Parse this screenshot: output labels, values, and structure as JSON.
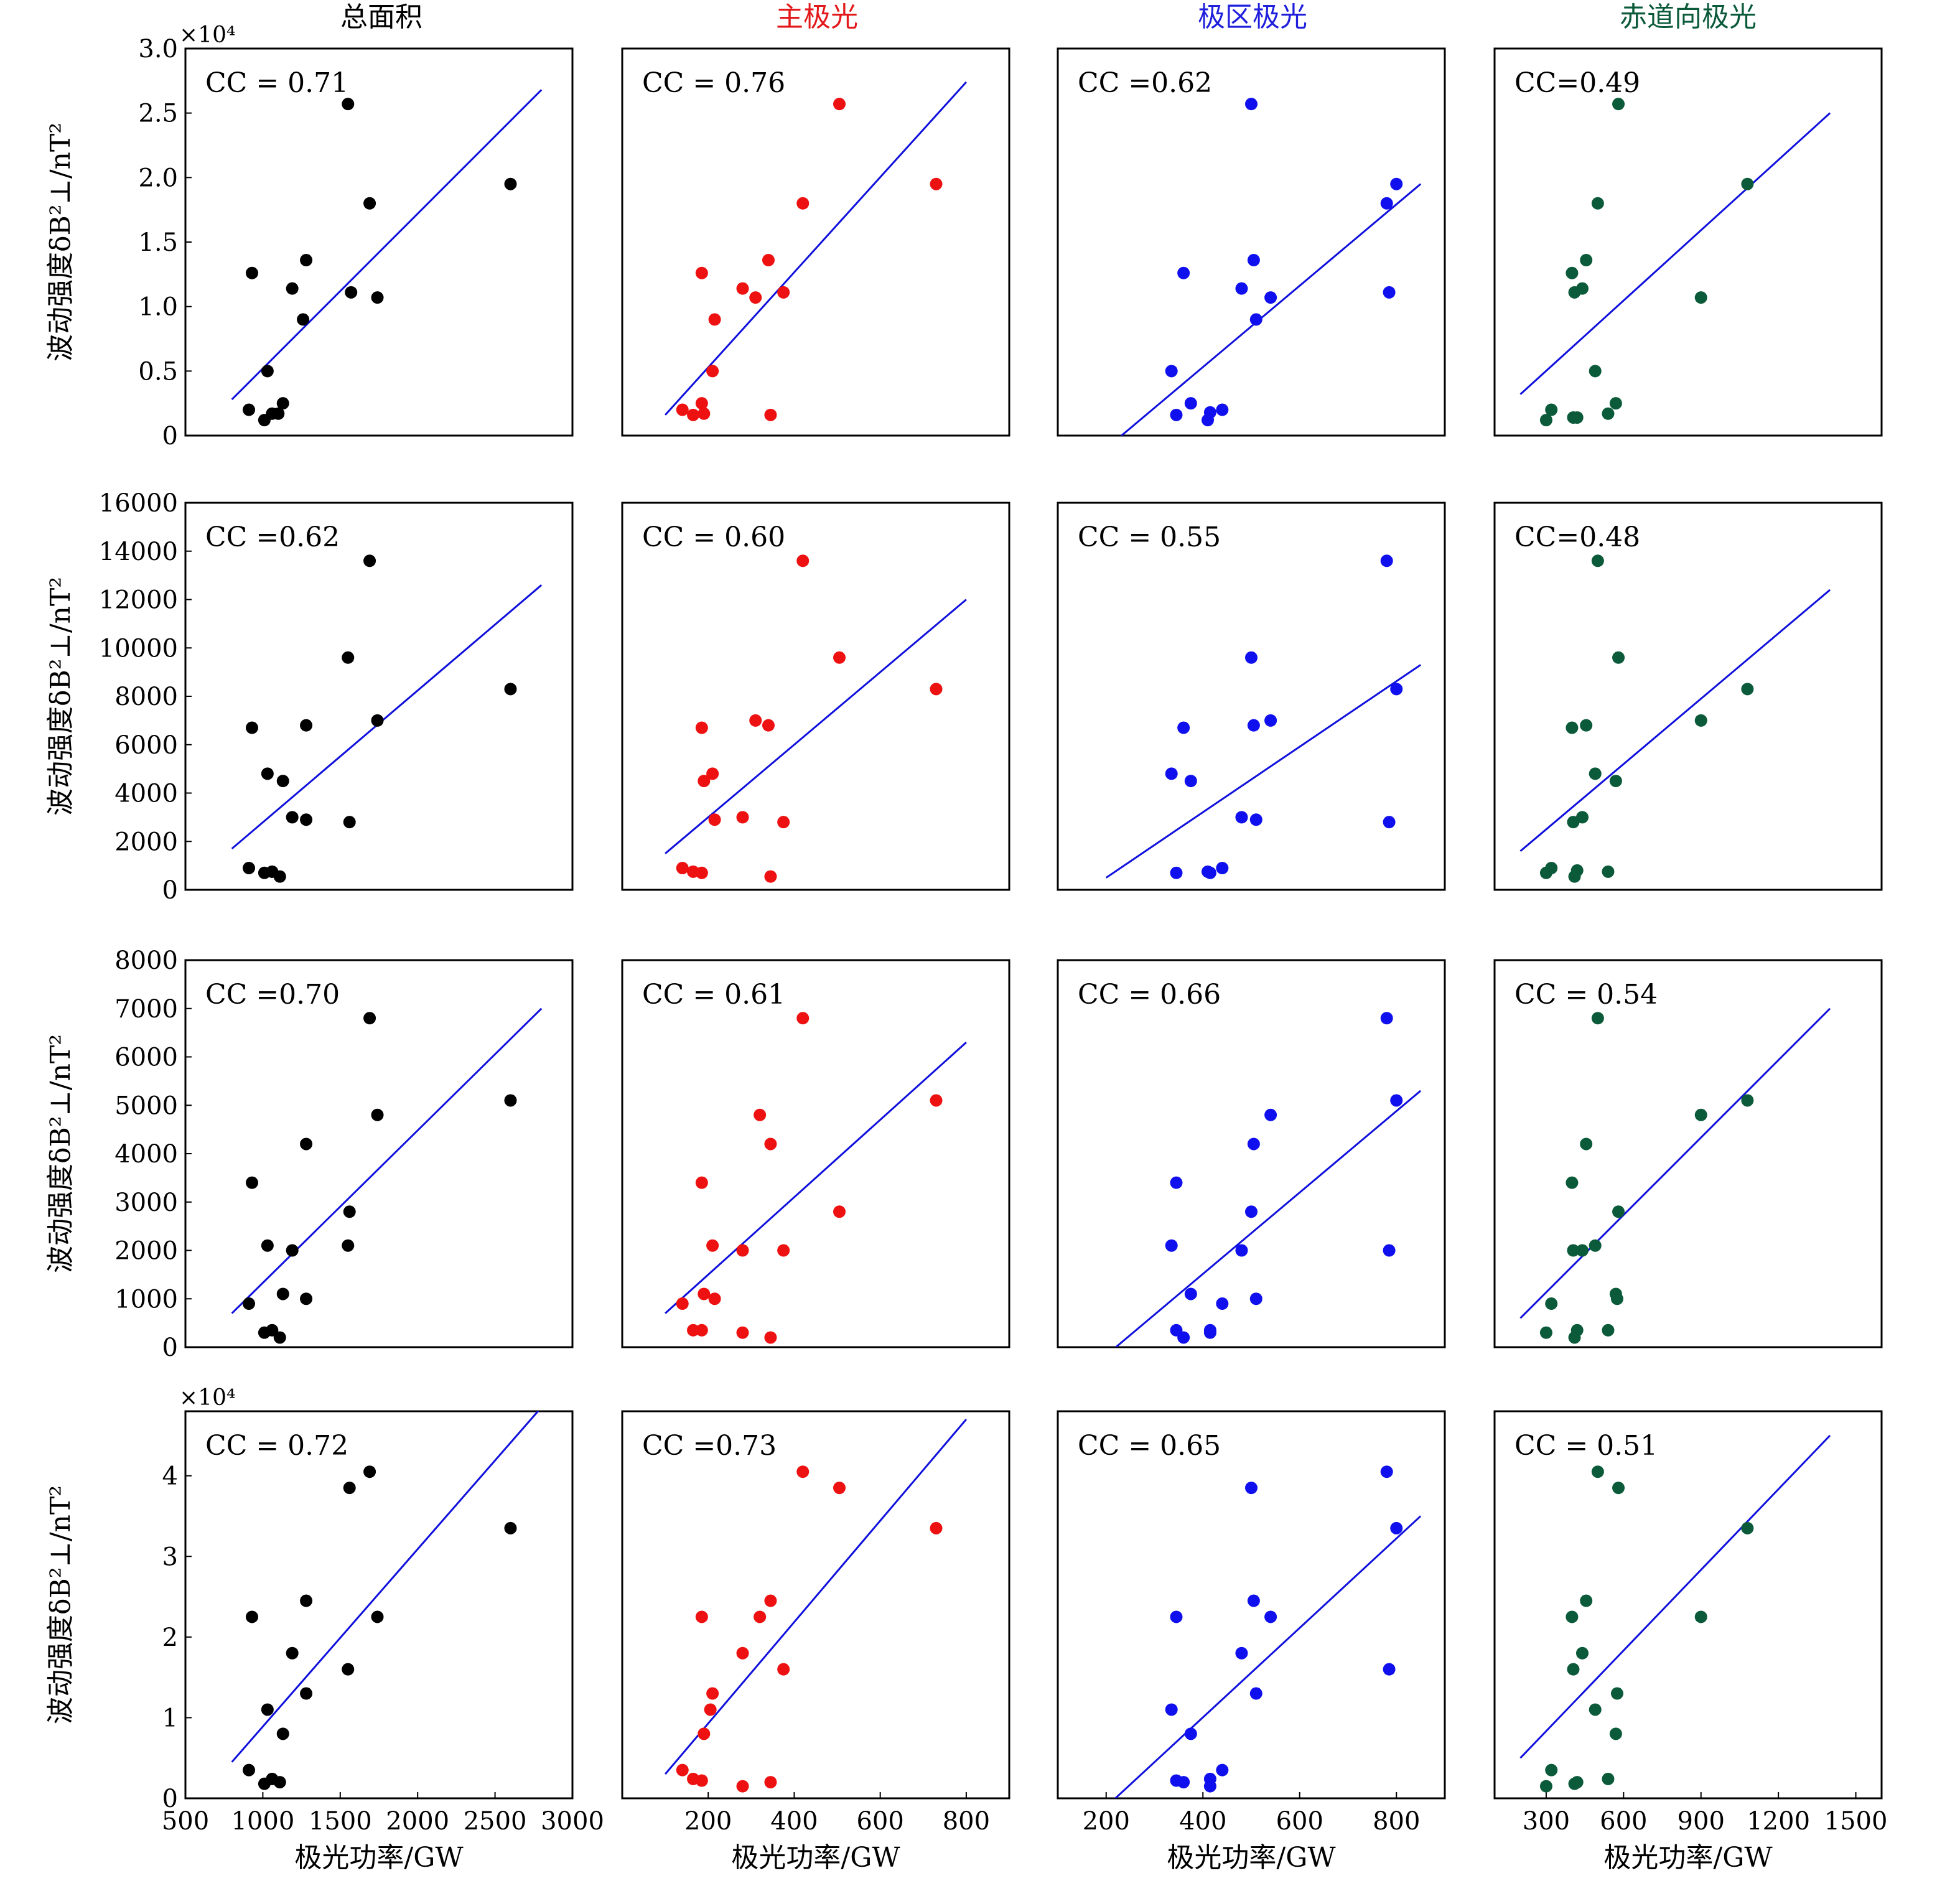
{
  "figure": {
    "column_titles": [
      {
        "text": "总面积",
        "color": "#000000"
      },
      {
        "text": "主极光",
        "color": "#e31a1c"
      },
      {
        "text": "极区极光",
        "color": "#1f1fdc"
      },
      {
        "text": "赤道向极光",
        "color": "#0b5a3a"
      }
    ],
    "ylabel": "波动强度δB²⊥/nT²",
    "xlabel": "极光功率/GW",
    "fit_line_color": "#1010dd",
    "point_colors": [
      "#000000",
      "#ee1111",
      "#1010ee",
      "#0b5a3a"
    ]
  },
  "chart_data": [
    {
      "type": "scatter",
      "row": 0,
      "col": 0,
      "cc": "CC = 0.71",
      "xlim": [
        500,
        3000
      ],
      "ylim": [
        0,
        3.0
      ],
      "yticks": [
        "0",
        "0.5",
        "1.0",
        "1.5",
        "2.0",
        "2.5",
        "3.0"
      ],
      "ytickvals": [
        0,
        0.5,
        1.0,
        1.5,
        2.0,
        2.5,
        3.0
      ],
      "ymult": "×10⁴",
      "xticks": [],
      "xtickvals": [],
      "x": [
        910,
        930,
        1010,
        1030,
        1060,
        1100,
        1130,
        1190,
        1260,
        1280,
        1550,
        1570,
        1690,
        1740,
        2600
      ],
      "y": [
        0.2,
        1.26,
        0.12,
        0.5,
        0.17,
        0.17,
        0.25,
        1.14,
        0.9,
        1.36,
        2.57,
        1.11,
        1.8,
        1.07,
        1.95
      ],
      "fit": {
        "x": [
          800,
          2800
        ],
        "y": [
          0.28,
          2.68
        ]
      }
    },
    {
      "type": "scatter",
      "row": 0,
      "col": 1,
      "cc": "CC = 0.76",
      "xlim": [
        0,
        900
      ],
      "ylim": [
        0,
        3.0
      ],
      "yticks": [],
      "ytickvals": [],
      "xticks": [],
      "xtickvals": [],
      "x": [
        140,
        165,
        185,
        185,
        190,
        210,
        215,
        280,
        310,
        340,
        345,
        375,
        420,
        505,
        730
      ],
      "y": [
        0.2,
        0.16,
        1.26,
        0.25,
        0.17,
        0.5,
        0.9,
        1.14,
        1.07,
        1.36,
        0.16,
        1.11,
        1.8,
        2.57,
        1.95
      ],
      "fit": {
        "x": [
          100,
          800
        ],
        "y": [
          0.16,
          2.74
        ]
      }
    },
    {
      "type": "scatter",
      "row": 0,
      "col": 2,
      "cc": "CC =0.62",
      "xlim": [
        100,
        900
      ],
      "ylim": [
        0,
        3.0
      ],
      "yticks": [],
      "ytickvals": [],
      "xticks": [],
      "xtickvals": [],
      "x": [
        335,
        345,
        360,
        375,
        410,
        415,
        440,
        480,
        500,
        505,
        510,
        540,
        780,
        785,
        800
      ],
      "y": [
        0.5,
        0.16,
        1.26,
        0.25,
        0.12,
        0.18,
        0.2,
        1.14,
        2.57,
        1.36,
        0.9,
        1.07,
        1.8,
        1.11,
        1.95
      ],
      "fit": {
        "x": [
          200,
          850
        ],
        "y": [
          -0.1,
          1.95
        ]
      }
    },
    {
      "type": "scatter",
      "row": 0,
      "col": 3,
      "cc": "CC=0.49",
      "xlim": [
        100,
        1600
      ],
      "ylim": [
        0,
        3.0
      ],
      "yticks": [],
      "ytickvals": [],
      "xticks": [],
      "xtickvals": [],
      "x": [
        300,
        320,
        400,
        405,
        410,
        420,
        440,
        455,
        490,
        500,
        540,
        570,
        580,
        900,
        1080
      ],
      "y": [
        0.12,
        0.2,
        1.26,
        0.14,
        1.11,
        0.14,
        1.14,
        1.36,
        0.5,
        1.8,
        0.17,
        0.25,
        2.57,
        1.07,
        1.95
      ],
      "fit": {
        "x": [
          200,
          1400
        ],
        "y": [
          0.32,
          2.5
        ]
      }
    },
    {
      "type": "scatter",
      "row": 1,
      "col": 0,
      "cc": "CC =0.62",
      "xlim": [
        500,
        3000
      ],
      "ylim": [
        0,
        16000
      ],
      "yticks": [
        "0",
        "2000",
        "4000",
        "6000",
        "8000",
        "10000",
        "12000",
        "14000",
        "16000"
      ],
      "ytickvals": [
        0,
        2000,
        4000,
        6000,
        8000,
        10000,
        12000,
        14000,
        16000
      ],
      "xticks": [],
      "xtickvals": [],
      "x": [
        910,
        930,
        1010,
        1030,
        1060,
        1110,
        1130,
        1190,
        1280,
        1280,
        1550,
        1560,
        1690,
        1740,
        2600
      ],
      "y": [
        900,
        6700,
        700,
        4800,
        750,
        550,
        4500,
        3000,
        2900,
        6800,
        9600,
        2800,
        13600,
        7000,
        8300
      ],
      "fit": {
        "x": [
          800,
          2800
        ],
        "y": [
          1700,
          12600
        ]
      }
    },
    {
      "type": "scatter",
      "row": 1,
      "col": 1,
      "cc": "CC = 0.60",
      "xlim": [
        0,
        900
      ],
      "ylim": [
        0,
        16000
      ],
      "yticks": [],
      "ytickvals": [],
      "xticks": [],
      "xtickvals": [],
      "x": [
        140,
        165,
        185,
        185,
        190,
        210,
        215,
        280,
        310,
        340,
        345,
        375,
        420,
        505,
        730
      ],
      "y": [
        900,
        750,
        6700,
        700,
        4500,
        4800,
        2900,
        3000,
        7000,
        6800,
        550,
        2800,
        13600,
        9600,
        8300
      ],
      "fit": {
        "x": [
          100,
          800
        ],
        "y": [
          1500,
          12000
        ]
      }
    },
    {
      "type": "scatter",
      "row": 1,
      "col": 2,
      "cc": "CC = 0.55",
      "xlim": [
        100,
        900
      ],
      "ylim": [
        0,
        16000
      ],
      "yticks": [],
      "ytickvals": [],
      "xticks": [],
      "xtickvals": [],
      "x": [
        335,
        345,
        360,
        375,
        410,
        415,
        440,
        480,
        500,
        505,
        510,
        540,
        780,
        785,
        800
      ],
      "y": [
        4800,
        700,
        6700,
        4500,
        750,
        700,
        900,
        3000,
        9600,
        6800,
        2900,
        7000,
        13600,
        2800,
        8300
      ],
      "fit": {
        "x": [
          200,
          850
        ],
        "y": [
          500,
          9300
        ]
      }
    },
    {
      "type": "scatter",
      "row": 1,
      "col": 3,
      "cc": "CC=0.48",
      "xlim": [
        100,
        1600
      ],
      "ylim": [
        0,
        16000
      ],
      "yticks": [],
      "ytickvals": [],
      "xticks": [],
      "xtickvals": [],
      "x": [
        300,
        320,
        400,
        405,
        410,
        420,
        440,
        455,
        490,
        500,
        540,
        570,
        580,
        900,
        1080
      ],
      "y": [
        700,
        900,
        6700,
        2800,
        550,
        800,
        3000,
        6800,
        4800,
        13600,
        750,
        4500,
        9600,
        7000,
        8300
      ],
      "fit": {
        "x": [
          200,
          1400
        ],
        "y": [
          1600,
          12400
        ]
      }
    },
    {
      "type": "scatter",
      "row": 2,
      "col": 0,
      "cc": "CC =0.70",
      "xlim": [
        500,
        3000
      ],
      "ylim": [
        0,
        8000
      ],
      "yticks": [
        "0",
        "1000",
        "2000",
        "3000",
        "4000",
        "5000",
        "6000",
        "7000",
        "8000"
      ],
      "ytickvals": [
        0,
        1000,
        2000,
        3000,
        4000,
        5000,
        6000,
        7000,
        8000
      ],
      "xticks": [],
      "xtickvals": [],
      "x": [
        910,
        930,
        1010,
        1030,
        1060,
        1110,
        1130,
        1190,
        1280,
        1280,
        1550,
        1560,
        1690,
        1740,
        2600
      ],
      "y": [
        900,
        3400,
        300,
        2100,
        350,
        200,
        1100,
        2000,
        1000,
        4200,
        2100,
        2800,
        6800,
        4800,
        5100
      ],
      "fit": {
        "x": [
          800,
          2800
        ],
        "y": [
          700,
          7000
        ]
      }
    },
    {
      "type": "scatter",
      "row": 2,
      "col": 1,
      "cc": "CC = 0.61",
      "xlim": [
        0,
        900
      ],
      "ylim": [
        0,
        8000
      ],
      "yticks": [],
      "ytickvals": [],
      "xticks": [],
      "xtickvals": [],
      "x": [
        140,
        165,
        185,
        185,
        190,
        210,
        215,
        280,
        280,
        320,
        345,
        345,
        375,
        420,
        505,
        730
      ],
      "y": [
        900,
        350,
        3400,
        350,
        1100,
        2100,
        1000,
        2000,
        300,
        4800,
        4200,
        200,
        2000,
        6800,
        2800,
        5100
      ],
      "fit": {
        "x": [
          100,
          800
        ],
        "y": [
          700,
          6300
        ]
      }
    },
    {
      "type": "scatter",
      "row": 2,
      "col": 2,
      "cc": "CC = 0.66",
      "xlim": [
        100,
        900
      ],
      "ylim": [
        0,
        8000
      ],
      "yticks": [],
      "ytickvals": [],
      "xticks": [],
      "xtickvals": [],
      "x": [
        335,
        345,
        345,
        360,
        375,
        415,
        415,
        440,
        480,
        500,
        505,
        510,
        540,
        780,
        785,
        800
      ],
      "y": [
        2100,
        3400,
        350,
        200,
        1100,
        300,
        350,
        900,
        2000,
        2800,
        4200,
        1000,
        4800,
        6800,
        2000,
        5100
      ],
      "fit": {
        "x": [
          220,
          850
        ],
        "y": [
          0,
          5300
        ]
      }
    },
    {
      "type": "scatter",
      "row": 2,
      "col": 3,
      "cc": "CC = 0.54",
      "xlim": [
        100,
        1600
      ],
      "ylim": [
        0,
        8000
      ],
      "yticks": [],
      "ytickvals": [],
      "xticks": [],
      "xtickvals": [],
      "x": [
        300,
        320,
        400,
        405,
        410,
        420,
        440,
        455,
        490,
        500,
        540,
        570,
        575,
        580,
        900,
        1080
      ],
      "y": [
        300,
        900,
        3400,
        2000,
        200,
        350,
        2000,
        4200,
        2100,
        6800,
        350,
        1100,
        1000,
        2800,
        4800,
        5100
      ],
      "fit": {
        "x": [
          200,
          1400
        ],
        "y": [
          600,
          7000
        ]
      }
    },
    {
      "type": "scatter",
      "row": 3,
      "col": 0,
      "cc": "CC = 0.72",
      "xlim": [
        500,
        3000
      ],
      "ylim": [
        0,
        4.8
      ],
      "yticks": [
        "0",
        "1",
        "2",
        "3",
        "4"
      ],
      "ytickvals": [
        0,
        1,
        2,
        3,
        4
      ],
      "ymult": "×10⁴",
      "xticks": [
        "500",
        "1000",
        "1500",
        "2000",
        "2500",
        "3000"
      ],
      "xtickvals": [
        500,
        1000,
        1500,
        2000,
        2500,
        3000
      ],
      "x": [
        910,
        930,
        1010,
        1030,
        1060,
        1110,
        1130,
        1190,
        1280,
        1280,
        1550,
        1560,
        1690,
        1740,
        2600
      ],
      "y": [
        0.35,
        2.25,
        0.18,
        1.1,
        0.24,
        0.2,
        0.8,
        1.8,
        1.3,
        2.45,
        1.6,
        3.85,
        4.05,
        2.25,
        3.35
      ],
      "fit": {
        "x": [
          800,
          2800
        ],
        "y": [
          0.45,
          4.85
        ]
      }
    },
    {
      "type": "scatter",
      "row": 3,
      "col": 1,
      "cc": "CC =0.73",
      "xlim": [
        0,
        900
      ],
      "ylim": [
        0,
        4.8
      ],
      "yticks": [],
      "ytickvals": [],
      "xticks": [
        "200",
        "400",
        "600",
        "800"
      ],
      "xtickvals": [
        200,
        400,
        600,
        800
      ],
      "x": [
        140,
        165,
        185,
        185,
        190,
        205,
        210,
        280,
        280,
        320,
        345,
        345,
        375,
        420,
        505,
        730
      ],
      "y": [
        0.35,
        0.24,
        2.25,
        0.22,
        0.8,
        1.1,
        1.3,
        0.15,
        1.8,
        2.25,
        0.2,
        2.45,
        1.6,
        4.05,
        3.85,
        3.35
      ],
      "fit": {
        "x": [
          100,
          800
        ],
        "y": [
          0.3,
          4.7
        ]
      }
    },
    {
      "type": "scatter",
      "row": 3,
      "col": 2,
      "cc": "CC = 0.65",
      "xlim": [
        100,
        900
      ],
      "ylim": [
        0,
        4.8
      ],
      "yticks": [],
      "ytickvals": [],
      "xticks": [
        "200",
        "400",
        "600",
        "800"
      ],
      "xtickvals": [
        200,
        400,
        600,
        800
      ],
      "x": [
        335,
        345,
        345,
        360,
        375,
        415,
        415,
        440,
        480,
        500,
        505,
        510,
        540,
        780,
        785,
        800
      ],
      "y": [
        1.1,
        0.22,
        2.25,
        0.2,
        0.8,
        0.15,
        0.24,
        0.35,
        1.8,
        3.85,
        2.45,
        1.3,
        2.25,
        4.05,
        1.6,
        3.35
      ],
      "fit": {
        "x": [
          210,
          850
        ],
        "y": [
          -0.05,
          3.5
        ]
      }
    },
    {
      "type": "scatter",
      "row": 3,
      "col": 3,
      "cc": "CC = 0.51",
      "xlim": [
        100,
        1600
      ],
      "ylim": [
        0,
        4.8
      ],
      "yticks": [],
      "ytickvals": [],
      "xticks": [
        "300",
        "600",
        "900",
        "1200",
        "1500"
      ],
      "xtickvals": [
        300,
        600,
        900,
        1200,
        1500
      ],
      "x": [
        300,
        320,
        400,
        405,
        410,
        420,
        440,
        455,
        490,
        500,
        540,
        570,
        575,
        580,
        900,
        1080
      ],
      "y": [
        0.15,
        0.35,
        2.25,
        1.6,
        0.18,
        0.2,
        1.8,
        2.45,
        1.1,
        4.05,
        0.24,
        0.8,
        1.3,
        3.85,
        2.25,
        3.35
      ],
      "fit": {
        "x": [
          200,
          1400
        ],
        "y": [
          0.5,
          4.5
        ]
      }
    }
  ]
}
